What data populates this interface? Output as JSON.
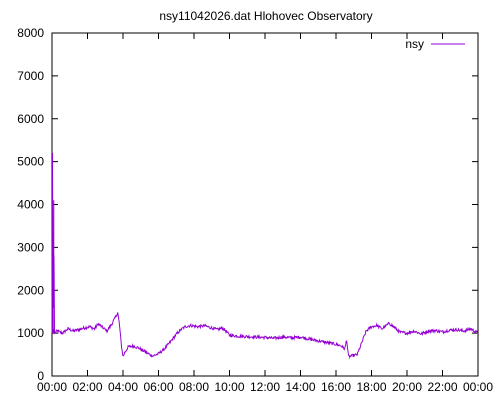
{
  "chart_data": {
    "type": "line",
    "title": "nsy11042026.dat Hlohovec Observatory",
    "xlabel": "",
    "ylabel": "",
    "xlim": [
      "00:00",
      "24:00"
    ],
    "ylim": [
      0,
      8000
    ],
    "x_tick_labels": [
      "00:00",
      "02:00",
      "04:00",
      "06:00",
      "08:00",
      "10:00",
      "12:00",
      "14:00",
      "16:00",
      "18:00",
      "20:00",
      "22:00",
      "00:00"
    ],
    "y_tick_labels": [
      "0",
      "1000",
      "2000",
      "3000",
      "4000",
      "5000",
      "6000",
      "7000",
      "8000"
    ],
    "y_ticks": [
      0,
      1000,
      2000,
      3000,
      4000,
      5000,
      6000,
      7000,
      8000
    ],
    "grid": false,
    "legend_position": "top-right",
    "series": [
      {
        "name": "nsy",
        "color": "#9400d3",
        "x_unit": "hours",
        "points": [
          [
            0.0,
            1000
          ],
          [
            0.03,
            5200
          ],
          [
            0.06,
            1100
          ],
          [
            0.1,
            4100
          ],
          [
            0.13,
            1000
          ],
          [
            0.3,
            1050
          ],
          [
            0.6,
            1000
          ],
          [
            0.9,
            1100
          ],
          [
            1.2,
            1050
          ],
          [
            1.5,
            1080
          ],
          [
            1.8,
            1120
          ],
          [
            2.1,
            1150
          ],
          [
            2.4,
            1100
          ],
          [
            2.6,
            1220
          ],
          [
            2.8,
            1150
          ],
          [
            3.1,
            1050
          ],
          [
            3.35,
            1200
          ],
          [
            3.55,
            1350
          ],
          [
            3.7,
            1480
          ],
          [
            3.8,
            1200
          ],
          [
            3.9,
            750
          ],
          [
            4.0,
            450
          ],
          [
            4.1,
            550
          ],
          [
            4.3,
            680
          ],
          [
            4.6,
            700
          ],
          [
            4.9,
            650
          ],
          [
            5.2,
            580
          ],
          [
            5.5,
            500
          ],
          [
            5.7,
            470
          ],
          [
            6.0,
            520
          ],
          [
            6.3,
            620
          ],
          [
            6.6,
            760
          ],
          [
            6.9,
            920
          ],
          [
            7.2,
            1060
          ],
          [
            7.5,
            1150
          ],
          [
            7.8,
            1180
          ],
          [
            8.2,
            1150
          ],
          [
            8.6,
            1170
          ],
          [
            9.0,
            1120
          ],
          [
            9.3,
            1080
          ],
          [
            9.6,
            1120
          ],
          [
            9.8,
            1050
          ],
          [
            10.0,
            950
          ],
          [
            10.5,
            930
          ],
          [
            11.0,
            920
          ],
          [
            11.5,
            910
          ],
          [
            12.0,
            900
          ],
          [
            12.5,
            880
          ],
          [
            13.0,
            910
          ],
          [
            13.5,
            890
          ],
          [
            14.0,
            910
          ],
          [
            14.5,
            860
          ],
          [
            15.0,
            820
          ],
          [
            15.5,
            780
          ],
          [
            16.0,
            740
          ],
          [
            16.3,
            700
          ],
          [
            16.5,
            630
          ],
          [
            16.6,
            860
          ],
          [
            16.7,
            450
          ],
          [
            16.9,
            470
          ],
          [
            17.2,
            500
          ],
          [
            17.4,
            720
          ],
          [
            17.7,
            1050
          ],
          [
            18.0,
            1150
          ],
          [
            18.3,
            1180
          ],
          [
            18.6,
            1100
          ],
          [
            19.0,
            1230
          ],
          [
            19.3,
            1130
          ],
          [
            19.6,
            1020
          ],
          [
            20.0,
            1000
          ],
          [
            20.4,
            1050
          ],
          [
            20.8,
            980
          ],
          [
            21.2,
            1050
          ],
          [
            21.6,
            1060
          ],
          [
            22.0,
            1030
          ],
          [
            22.4,
            1070
          ],
          [
            22.8,
            1080
          ],
          [
            23.2,
            1050
          ],
          [
            23.6,
            1100
          ],
          [
            24.0,
            1000
          ]
        ]
      }
    ]
  }
}
